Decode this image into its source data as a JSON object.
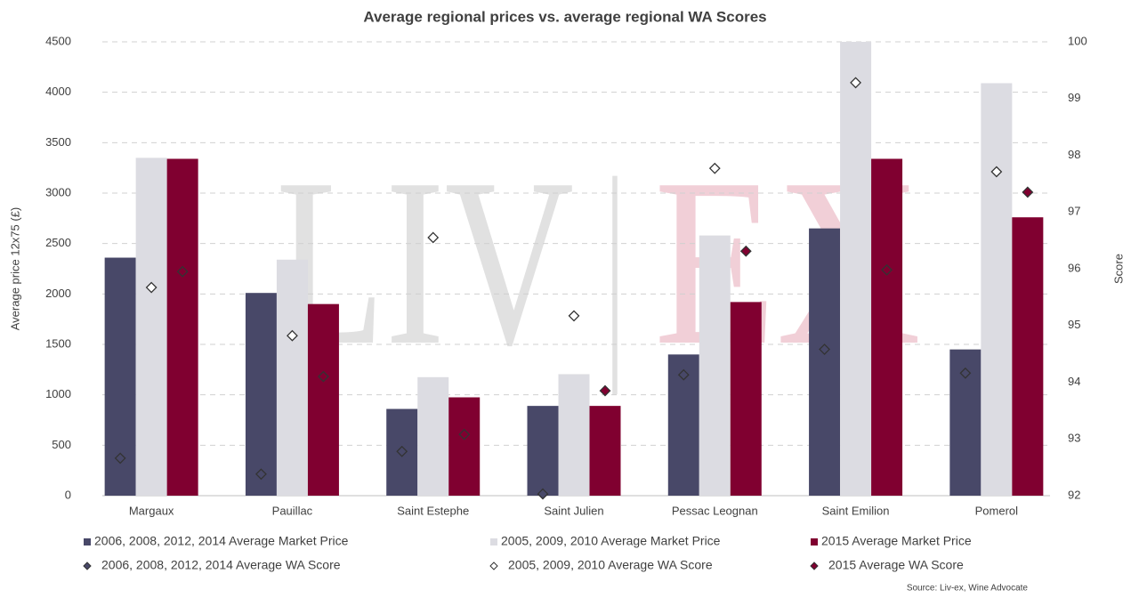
{
  "chart_data": {
    "type": "bar",
    "title": "Average regional prices vs. average regional WA Scores",
    "watermark": [
      "LIV",
      "|",
      "EX"
    ],
    "ylabel": "Average price 12x75 (£)",
    "y2label": "Score",
    "source": "Source: Liv-ex, Wine Advocate",
    "categories": [
      "Margaux",
      "Pauillac",
      "Saint Estephe",
      "Saint Julien",
      "Pessac Leognan",
      "Saint Emilion",
      "Pomerol"
    ],
    "series": [
      {
        "name": "2006, 2008, 2012, 2014 Average Market Price",
        "type": "bar",
        "color": "#484868",
        "values": [
          2360,
          2010,
          860,
          890,
          1400,
          2650,
          1450
        ]
      },
      {
        "name": "2005, 2009, 2010 Average Market Price",
        "type": "bar",
        "color": "#dcdce2",
        "values": [
          3350,
          2340,
          1175,
          1205,
          2580,
          4500,
          4090
        ]
      },
      {
        "name": "2015 Average Market Price",
        "type": "bar",
        "color": "#800030",
        "values": [
          3340,
          1900,
          975,
          890,
          1920,
          3340,
          2760
        ]
      },
      {
        "name": "2006, 2008, 2012, 2014 Average WA Score",
        "type": "scatter",
        "axis": "y2",
        "marker": "diamond",
        "color": "#484868",
        "values": [
          92.66,
          92.38,
          92.78,
          92.03,
          94.13,
          94.58,
          94.16
        ]
      },
      {
        "name": "2005, 2009, 2010 Average WA Score",
        "type": "scatter",
        "axis": "y2",
        "marker": "diamond",
        "color": "#ffffff",
        "values": [
          95.67,
          94.82,
          96.55,
          95.17,
          97.77,
          99.28,
          97.71
        ]
      },
      {
        "name": "2015 Average WA Score",
        "type": "scatter",
        "axis": "y2",
        "marker": "diamond",
        "color": "#800030",
        "values": [
          95.95,
          94.1,
          93.08,
          93.85,
          96.31,
          95.98,
          97.35
        ]
      }
    ],
    "ylim": [
      0,
      4500
    ],
    "yticks": [
      0,
      500,
      1000,
      1500,
      2000,
      2500,
      3000,
      3500,
      4000,
      4500
    ],
    "y2lim": [
      92,
      100
    ],
    "y2ticks": [
      92,
      93,
      94,
      95,
      96,
      97,
      98,
      99,
      100
    ],
    "grid": true
  }
}
